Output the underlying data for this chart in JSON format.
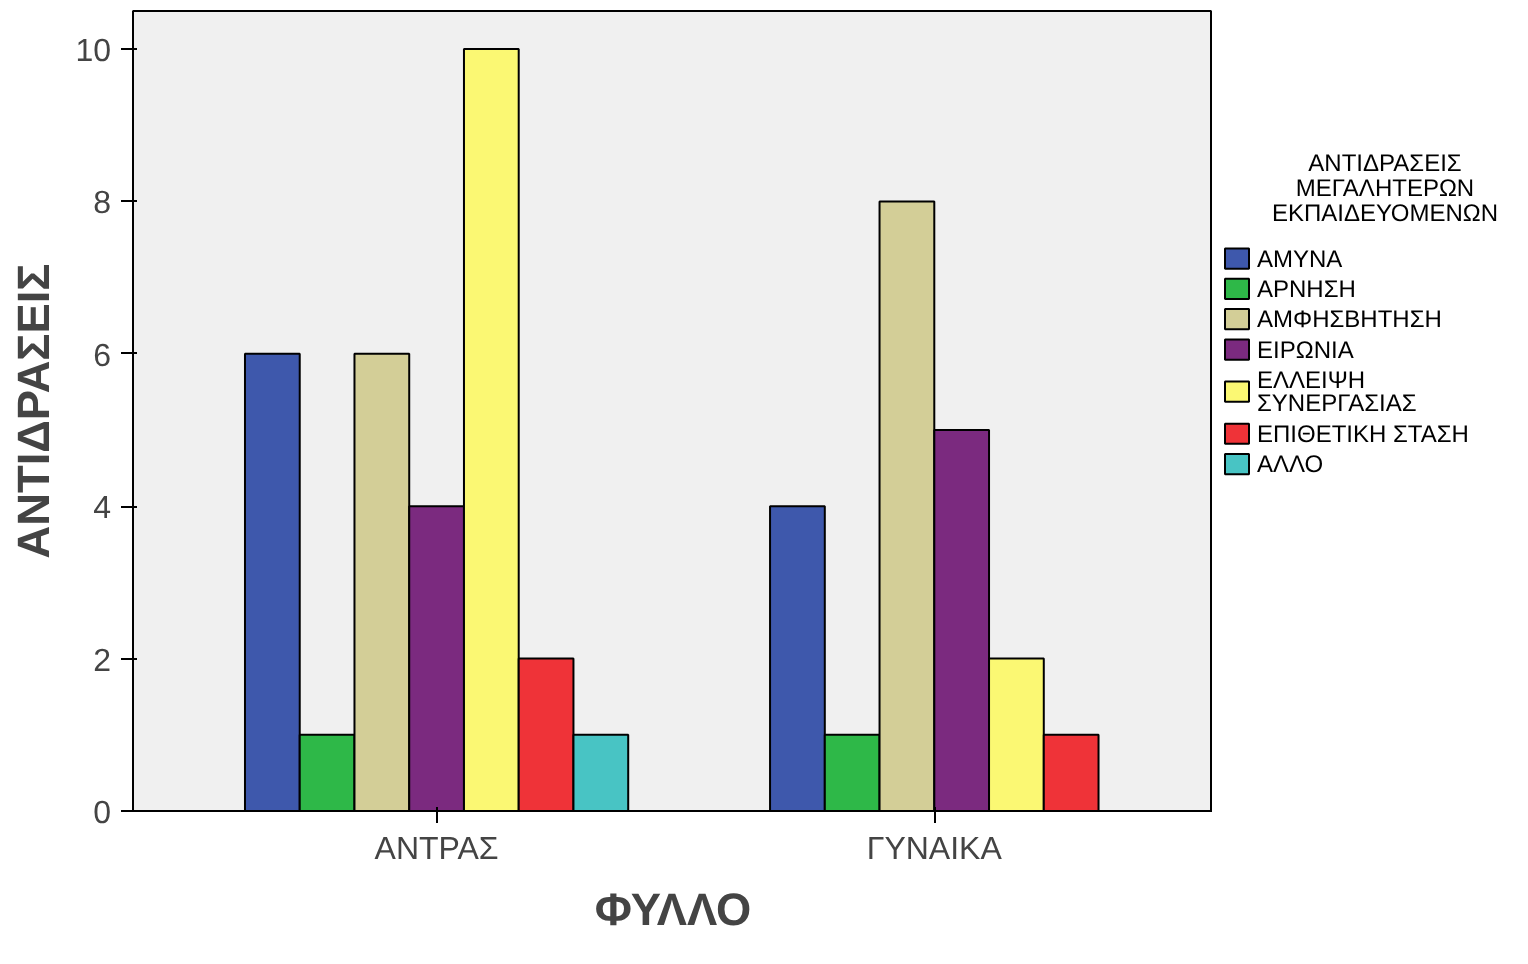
{
  "chart_data": {
    "type": "bar",
    "xlabel": "ΦΥΛΛΟ",
    "ylabel": "ΑΝΤΙΔΡΑΣΕΙΣ",
    "legend_title": "ΑΝΤΙΔΡΑΣΕΙΣ ΜΕΓΑΛΗΤΕΡΩΝ ΕΚΠΑΙΔΕΥΟΜΕΝΩΝ",
    "legend": "right",
    "grid": false,
    "categories": [
      "ΑΝΤΡΑΣ",
      "ΓΥΝΑΙΚΑ"
    ],
    "ylim": [
      0,
      10.5
    ],
    "yticks": [
      0,
      2,
      4,
      6,
      8,
      10
    ],
    "series": [
      {
        "name": "ΑΜΥΝΑ",
        "color": "#3e58ac",
        "values": [
          6,
          4
        ]
      },
      {
        "name": "ΑΡΝΗΣΗ",
        "color": "#2eb848",
        "values": [
          1,
          1
        ]
      },
      {
        "name": "ΑΜΦΗΣΒΗΤΗΣΗ",
        "color": "#d3ce97",
        "values": [
          6,
          8
        ]
      },
      {
        "name": "ΕΙΡΩΝΙΑ",
        "color": "#7b2a7f",
        "values": [
          4,
          5
        ]
      },
      {
        "name": "ΕΛΛΕΙΨΗ ΣΥΝΕΡΓΑΣΙΑΣ",
        "color": "#fbf873",
        "values": [
          10,
          2
        ]
      },
      {
        "name": "ΕΠΙΘΕΤΙΚΗ ΣΤΑΣΗ",
        "color": "#ef3338",
        "values": [
          2,
          1
        ]
      },
      {
        "name": "ΑΛΛΟ",
        "color": "#48c4c4",
        "values": [
          1,
          null
        ]
      }
    ]
  }
}
